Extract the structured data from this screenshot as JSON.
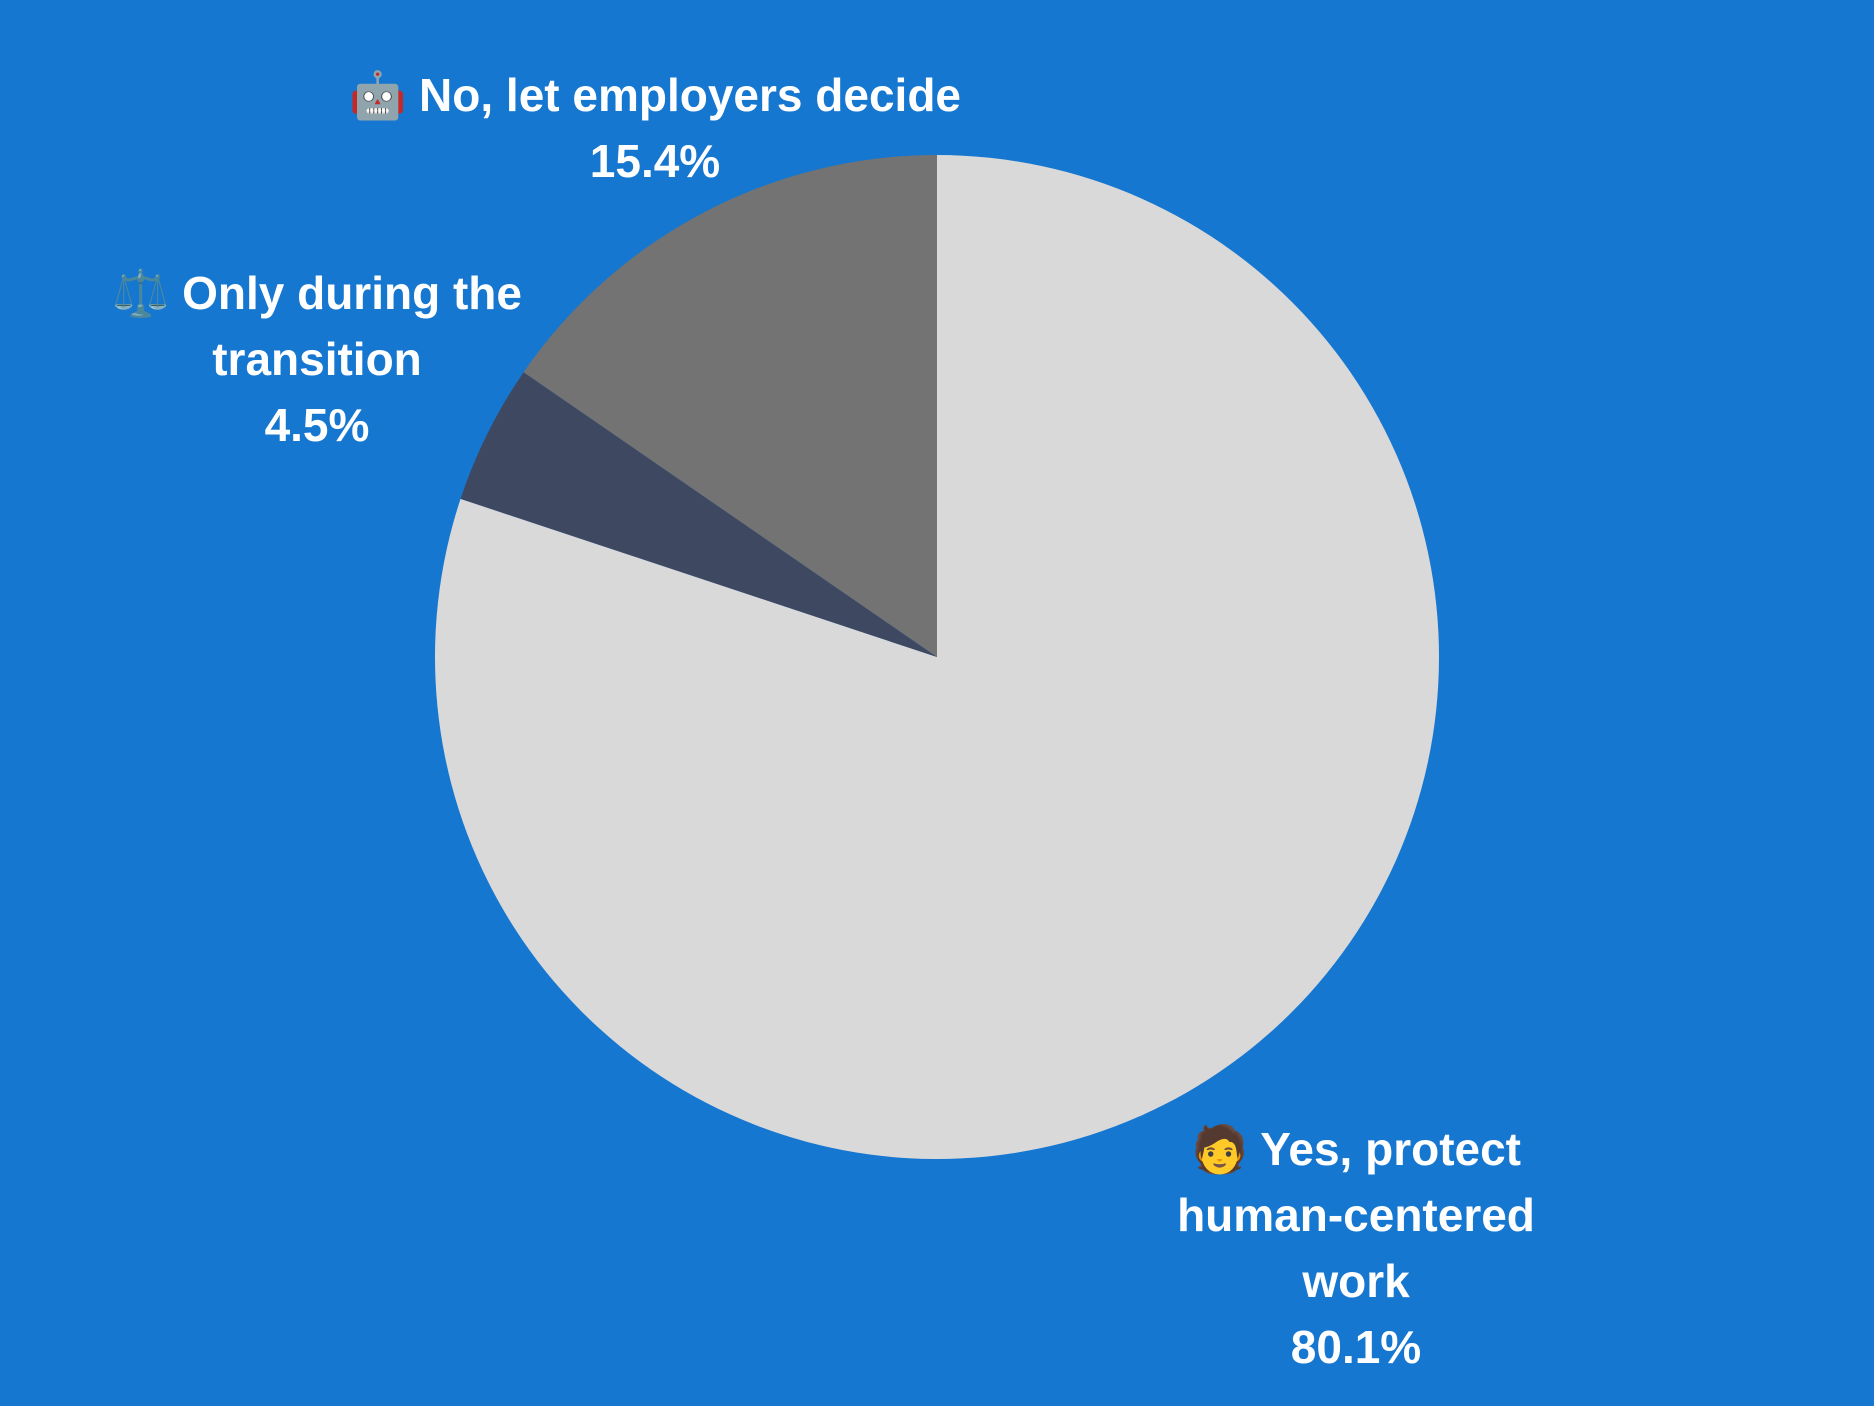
{
  "chart_data": {
    "type": "pie",
    "categories": [
      "🧑 Yes, protect human-centered work",
      "⚖️ Only during the transition",
      "🤖 No, let employers decide"
    ],
    "values": [
      80.1,
      4.5,
      15.4
    ],
    "value_labels": [
      "80.1%",
      "4.5%",
      "15.4%"
    ],
    "colors": [
      "#d9d9d9",
      "#3f4861",
      "#737373"
    ]
  }
}
